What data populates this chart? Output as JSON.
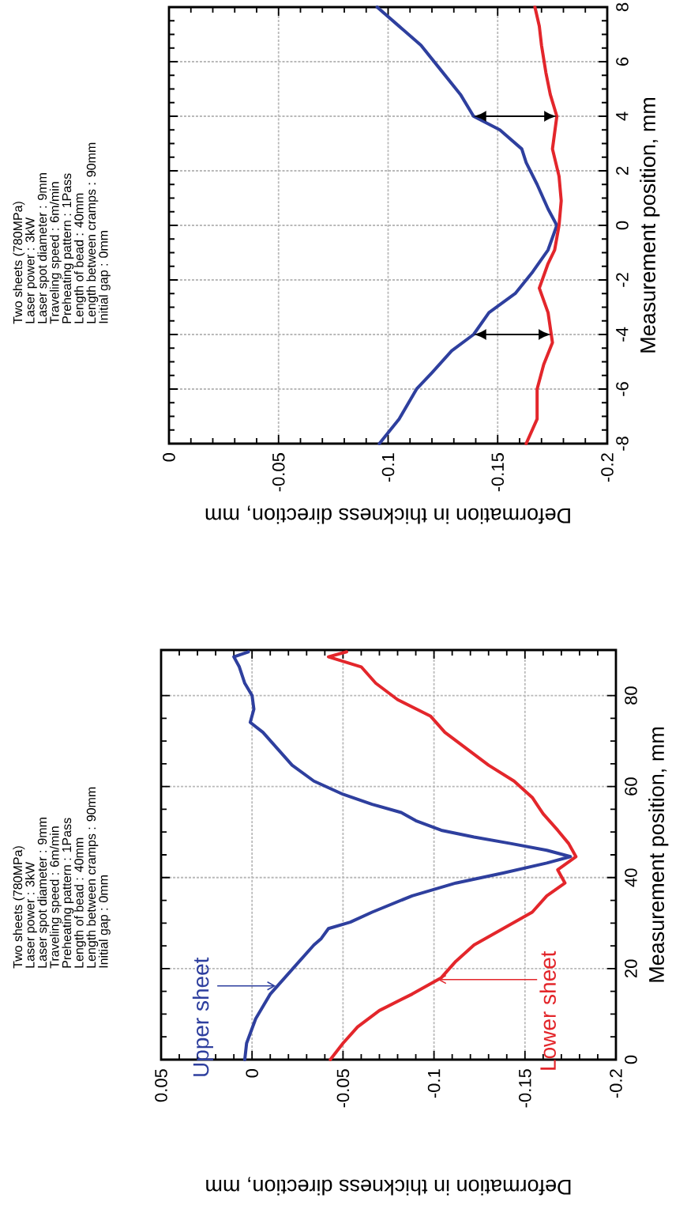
{
  "chart_data": [
    {
      "type": "line",
      "xlabel": "Deformation in thickness direction, mm",
      "ylabel": "Measurement position, mm",
      "xlim": [
        0.05,
        -0.2
      ],
      "xticks": [
        0.05,
        0,
        -0.05,
        -0.1,
        -0.15,
        -0.2
      ],
      "ylim": [
        0,
        90
      ],
      "yticks": [
        0,
        20,
        40,
        60,
        80
      ],
      "grid": true,
      "annotations": [
        "Two sheets (780MPa)",
        "Laser power : 3kW",
        "Laser spot diameter : 9mm",
        "Traveling speed : 6m/min",
        "Preheating pattern : 1Pass",
        "Length of bead : 40mm",
        "Length between cramps : 90mm",
        "Initial gap : 0mm",
        {
          "text": "Upper sheet",
          "x": -0.013,
          "y": 16.2
        },
        {
          "text": "Lower sheet",
          "x": -0.102,
          "y": 17.6
        }
      ],
      "series": [
        {
          "color": "#2e3f9e",
          "x": [
            0.004,
            0.003,
            -0.002,
            -0.01,
            -0.018,
            -0.026,
            -0.034,
            -0.038,
            -0.042,
            -0.054,
            -0.066,
            -0.088,
            -0.112,
            -0.138,
            -0.162,
            -0.175,
            -0.162,
            -0.142,
            -0.122,
            -0.104,
            -0.09,
            -0.082,
            -0.066,
            -0.05,
            -0.034,
            -0.022,
            -0.014,
            -0.006,
            0.001,
            -0.001,
            0,
            0.004,
            0.007,
            0.01,
            0.002
          ],
          "values": [
            0,
            3.6,
            9,
            14.4,
            18,
            21.6,
            25.2,
            26.6,
            28.8,
            30.2,
            32.4,
            36,
            38.8,
            41,
            43.2,
            44.6,
            46,
            47.5,
            48.9,
            50.4,
            52.5,
            54.3,
            56.1,
            58.3,
            61.2,
            64.7,
            68.3,
            71.9,
            74.1,
            77,
            80,
            82.7,
            86.3,
            88.5,
            89.6
          ]
        },
        {
          "color": "#e3262b",
          "x": [
            -0.043,
            -0.05,
            -0.058,
            -0.07,
            -0.088,
            -0.104,
            -0.112,
            -0.122,
            -0.138,
            -0.154,
            -0.162,
            -0.172,
            -0.168,
            -0.178,
            -0.174,
            -0.168,
            -0.16,
            -0.154,
            -0.144,
            -0.13,
            -0.118,
            -0.106,
            -0.098,
            -0.08,
            -0.068,
            -0.06,
            -0.042,
            -0.052
          ],
          "values": [
            0,
            3.6,
            7.2,
            10.8,
            14.4,
            18,
            21.6,
            25.2,
            28.8,
            32.4,
            36,
            38.8,
            41.7,
            44.6,
            47.5,
            50.4,
            54,
            57.6,
            61.2,
            64.7,
            68.3,
            71.9,
            75.5,
            79.1,
            82.7,
            86.3,
            88.5,
            89.6
          ]
        }
      ]
    },
    {
      "type": "line",
      "xlabel": "Deformation in thickness direction, mm",
      "ylabel": "Measurement position, mm",
      "xlim": [
        0,
        -0.2
      ],
      "xticks": [
        0,
        -0.05,
        -0.1,
        -0.15,
        -0.2
      ],
      "ylim": [
        -8,
        8
      ],
      "yticks": [
        -8,
        -6,
        -4,
        -2,
        0,
        2,
        4,
        6,
        8
      ],
      "grid": true,
      "annotations": [
        "Two sheets (780MPa)",
        "Laser power : 3kW",
        "Laser spot diameter : 9mm",
        "Traveling speed : 6m/min",
        "Preheating pattern : 1Pass",
        "Length of bead : 40mm",
        "Length between cramps : 90mm",
        "Initial gap : 0mm"
      ],
      "series": [
        {
          "color": "#2e3f9e",
          "x": [
            -0.096,
            -0.105,
            -0.113,
            -0.12,
            -0.129,
            -0.139,
            -0.146,
            -0.158,
            -0.166,
            -0.173,
            -0.177,
            -0.173,
            -0.168,
            -0.163,
            -0.161,
            -0.151,
            -0.139,
            -0.133,
            -0.123,
            -0.115,
            -0.105,
            -0.095
          ],
          "values": [
            -8,
            -7.1,
            -6,
            -5.4,
            -4.6,
            -4,
            -3.2,
            -2.5,
            -1.7,
            -0.9,
            0,
            0.6,
            1.5,
            2.3,
            2.8,
            3.5,
            4,
            4.8,
            5.8,
            6.6,
            7.3,
            8
          ]
        },
        {
          "color": "#e3262b",
          "x": [
            -0.163,
            -0.168,
            -0.168,
            -0.171,
            -0.175,
            -0.173,
            -0.169,
            -0.173,
            -0.176,
            -0.178,
            -0.179,
            -0.178,
            -0.175,
            -0.177,
            -0.174,
            -0.172,
            -0.17,
            -0.169,
            -0.167
          ],
          "values": [
            -8,
            -7.1,
            -6,
            -5.1,
            -4.3,
            -3.2,
            -2.3,
            -1.4,
            -0.9,
            0,
            0.9,
            1.8,
            2.8,
            4,
            4.8,
            5.6,
            6.6,
            7.3,
            8
          ]
        }
      ]
    }
  ]
}
